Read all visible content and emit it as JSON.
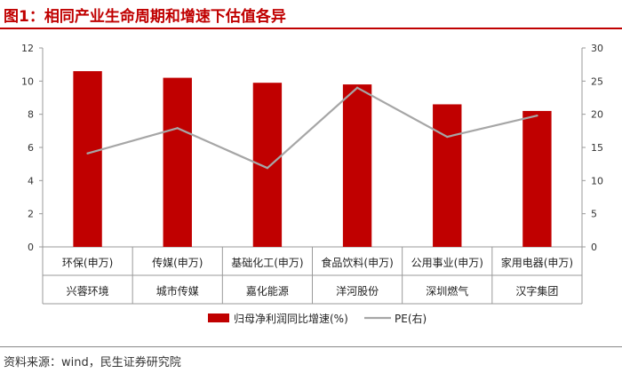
{
  "figure_title": "图1：相同产业生命周期和增速下估值各异",
  "source_note": "资料来源：wind，民生证券研究院",
  "colors": {
    "bar": "#c00000",
    "line": "#a6a6a6",
    "title": "#c00000",
    "axis": "#999999"
  },
  "chart_data": {
    "type": "bar",
    "categories": [
      "环保(申万)",
      "传媒(申万)",
      "基础化工(申万)",
      "食品饮料(申万)",
      "公用事业(申万)",
      "家用电器(申万)"
    ],
    "companies": [
      "兴蓉环境",
      "城市传媒",
      "嘉化能源",
      "洋河股份",
      "深圳燃气",
      "汉字集团"
    ],
    "series": [
      {
        "name": "归母净利润同比增速(%)",
        "kind": "bar",
        "axis": "left",
        "values": [
          10.6,
          10.2,
          9.9,
          9.8,
          8.6,
          8.2
        ]
      },
      {
        "name": "PE(右)",
        "kind": "line",
        "axis": "right",
        "values": [
          14.1,
          17.9,
          11.9,
          24.0,
          16.6,
          19.8
        ]
      }
    ],
    "ylim_left": [
      0,
      12
    ],
    "yticks_left": [
      0,
      2,
      4,
      6,
      8,
      10,
      12
    ],
    "ylim_right": [
      0,
      30
    ],
    "yticks_right": [
      0,
      5,
      10,
      15,
      20,
      25,
      30
    ],
    "legend_position": "bottom-center",
    "grid": false
  }
}
